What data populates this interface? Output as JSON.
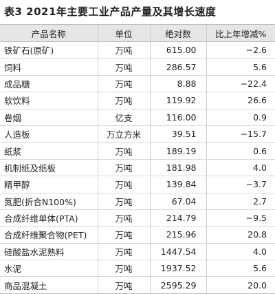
{
  "title": "表3  2021年主要工业产品产量及其增长速度",
  "table": {
    "header": [
      "产品名称",
      "单位",
      "绝对数",
      "比上年增减%"
    ],
    "rows": [
      [
        "铁矿石(原矿)",
        "万吨",
        "615.00",
        "−2.6"
      ],
      [
        "饲料",
        "万吨",
        "286.57",
        "5.6"
      ],
      [
        "成品糖",
        "万吨",
        "8.88",
        "−22.4"
      ],
      [
        "软饮料",
        "万吨",
        "119.92",
        "26.6"
      ],
      [
        "卷烟",
        "亿支",
        "116.00",
        "0.9"
      ],
      [
        "人造板",
        "万立方米",
        "39.51",
        "−15.7"
      ],
      [
        "纸浆",
        "万吨",
        "189.19",
        "0.6"
      ],
      [
        "机制纸及纸板",
        "万吨",
        "181.98",
        "4.0"
      ],
      [
        "精甲醇",
        "万吨",
        "139.84",
        "−3.7"
      ],
      [
        "氮肥(折合N100%)",
        "万吨",
        "67.04",
        "2.7"
      ],
      [
        "合成纤维单体(PTA)",
        "万吨",
        "214.79",
        "−9.5"
      ],
      [
        "合成纤维聚合物(PET)",
        "万吨",
        "215.96",
        "20.8"
      ],
      [
        "硅酸盐水泥熟料",
        "万吨",
        "1447.54",
        "4.0"
      ],
      [
        "水泥",
        "万吨",
        "1937.52",
        "5.6"
      ],
      [
        "商品混凝土",
        "万吨",
        "2595.29",
        "20.0"
      ]
    ]
  }
}
